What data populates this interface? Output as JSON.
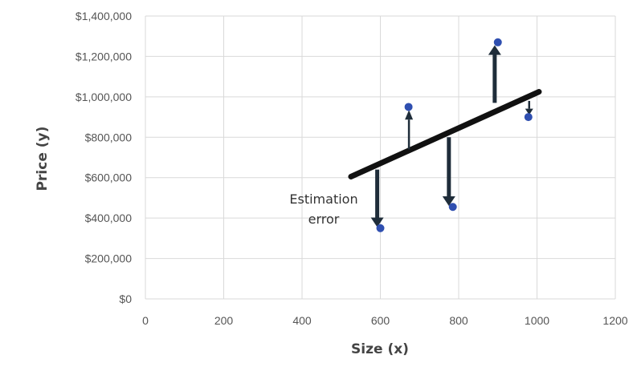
{
  "chart_data": {
    "type": "scatter",
    "title": "",
    "xlabel": "Size (x)",
    "ylabel": "Price (y)",
    "xlim": [
      0,
      1200
    ],
    "ylim": [
      0,
      1400000
    ],
    "xticks": [
      0,
      200,
      400,
      600,
      800,
      1000,
      1200
    ],
    "xtick_labels": [
      "0",
      "200",
      "400",
      "600",
      "800",
      "1000",
      "1200"
    ],
    "yticks": [
      0,
      200000,
      400000,
      600000,
      800000,
      1000000,
      1200000,
      1400000
    ],
    "ytick_labels": [
      "$0",
      "$200,000",
      "$400,000",
      "$600,000",
      "$800,000",
      "$1,000,000",
      "$1,200,000",
      "$1,400,000"
    ],
    "grid": true,
    "points": [
      {
        "x": 600,
        "y": 350000
      },
      {
        "x": 672,
        "y": 950000
      },
      {
        "x": 785,
        "y": 455000
      },
      {
        "x": 900,
        "y": 1270000
      },
      {
        "x": 978,
        "y": 900000
      }
    ],
    "regression_line": {
      "x": [
        525,
        1005
      ],
      "y": [
        605000,
        1025000
      ]
    },
    "error_arrows": [
      {
        "x": 592,
        "y_from": 640000,
        "y_to": 355000
      },
      {
        "x": 673,
        "y_from": 740000,
        "y_to": 935000
      },
      {
        "x": 775,
        "y_from": 800000,
        "y_to": 460000
      },
      {
        "x": 892,
        "y_from": 970000,
        "y_to": 1255000
      },
      {
        "x": 980,
        "y_from": 980000,
        "y_to": 910000
      }
    ],
    "annotation": {
      "line1": "Estimation",
      "line2": "error"
    },
    "colors": {
      "point": "#2f4fb0",
      "line": "#111111",
      "arrow": "#1f2d3a",
      "grid": "#d9d9d9"
    }
  }
}
